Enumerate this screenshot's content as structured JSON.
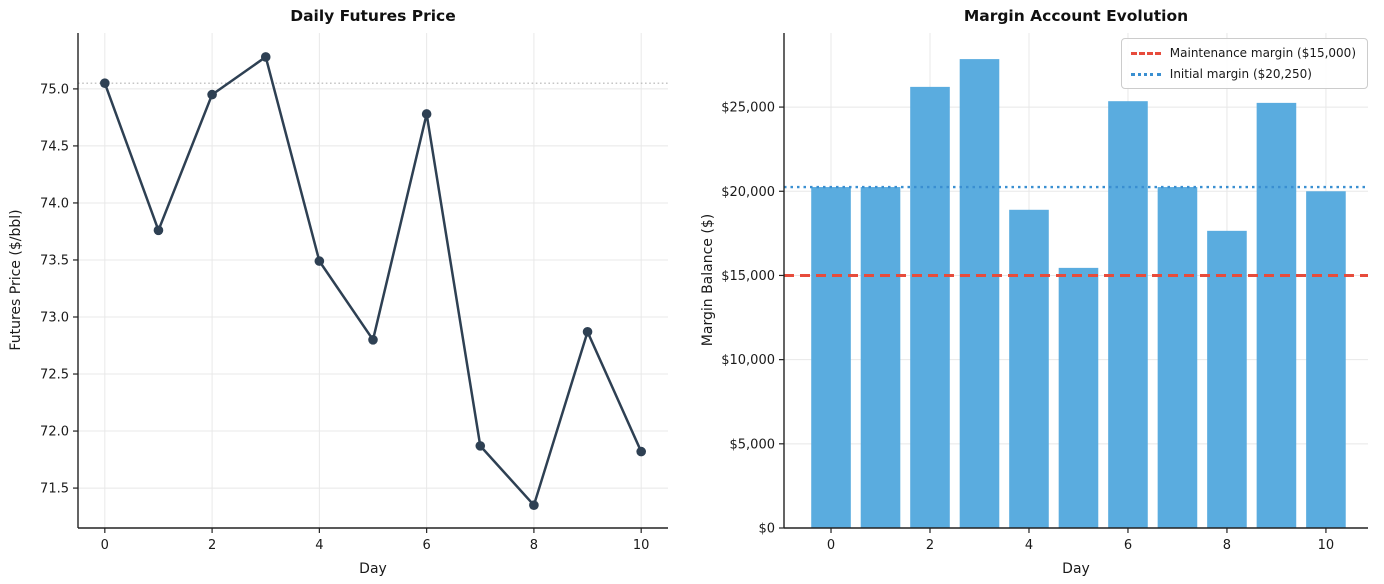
{
  "chart_data": [
    {
      "type": "line",
      "title": "Daily Futures Price",
      "xlabel": "Day",
      "ylabel": "Futures Price ($/bbl)",
      "x": [
        0,
        1,
        2,
        3,
        4,
        5,
        6,
        7,
        8,
        9,
        10
      ],
      "values": [
        75.05,
        73.76,
        74.95,
        75.28,
        73.49,
        72.8,
        74.78,
        71.87,
        71.35,
        72.87,
        71.82
      ],
      "line_color": "#2e4053",
      "marker": "circle",
      "reference_line": {
        "y": 75.05,
        "color": "#b3b3b3",
        "style": "dotted"
      },
      "xlim": [
        -0.5,
        10.5
      ],
      "ylim": [
        71.15,
        75.49
      ],
      "xticks": [
        0,
        2,
        4,
        6,
        8,
        10
      ],
      "yticks": [
        71.5,
        72.0,
        72.5,
        73.0,
        73.5,
        74.0,
        74.5,
        75.0
      ],
      "ytick_labels": [
        "71.5",
        "72.0",
        "72.5",
        "73.0",
        "73.5",
        "74.0",
        "74.5",
        "75.0"
      ],
      "grid": true,
      "legend": false
    },
    {
      "type": "bar",
      "title": "Margin Account Evolution",
      "xlabel": "Day",
      "ylabel": "Margin Balance ($)",
      "categories": [
        0,
        1,
        2,
        3,
        4,
        5,
        6,
        7,
        8,
        9,
        10
      ],
      "values": [
        20250,
        20250,
        26200,
        27850,
        18900,
        15450,
        25350,
        20250,
        17650,
        25250,
        20000
      ],
      "bar_color": "#5aacdf",
      "bar_width": 0.8,
      "hlines": [
        {
          "y": 15000,
          "label": "Maintenance margin ($15,000)",
          "color": "#e74c3c",
          "style": "dashed"
        },
        {
          "y": 20250,
          "label": "Initial margin ($20,250)",
          "color": "#3a8fd1",
          "style": "dotted"
        }
      ],
      "legend": true,
      "legend_position": "upper right",
      "xlim": [
        -0.95,
        10.85
      ],
      "ylim": [
        0,
        29400
      ],
      "xticks": [
        0,
        2,
        4,
        6,
        8,
        10
      ],
      "yticks": [
        0,
        5000,
        10000,
        15000,
        20000,
        25000
      ],
      "ytick_labels": [
        "$0",
        "$5,000",
        "$10,000",
        "$15,000",
        "$20,000",
        "$25,000"
      ],
      "grid": true
    }
  ],
  "style_colors": {
    "background": "#ffffff",
    "grid": "#e8e8e8",
    "spine": "#222222",
    "text": "#1a1a1a"
  }
}
